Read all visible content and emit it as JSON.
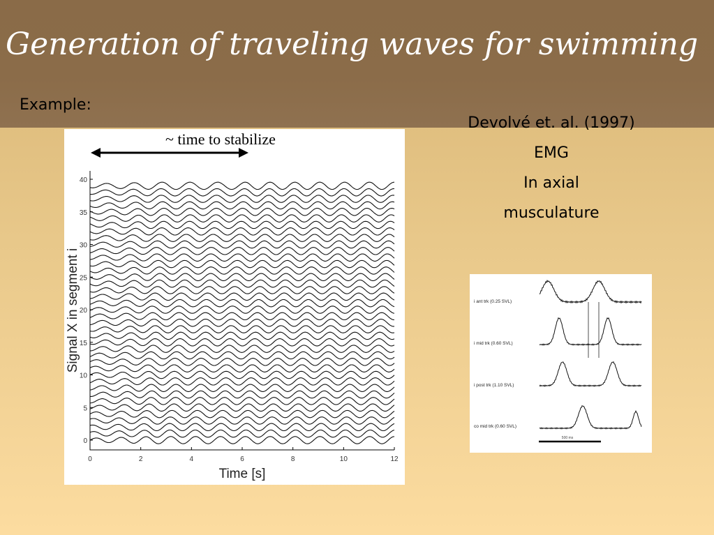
{
  "slide": {
    "title": "Generation of traveling waves for swimming",
    "example_label": "Example:",
    "citation_lines": [
      "Devolvé et. al. (1997)",
      "EMG",
      "In axial",
      "musculature"
    ],
    "colors": {
      "header": "#8b6c49",
      "background_top": "#d8b574",
      "background_bottom": "#fcdca0"
    }
  },
  "main_plot": {
    "annotation": "~ time to stabilize",
    "xlabel": "Time [s]",
    "ylabel": "Signal X in segment i",
    "x_ticks": [
      "0",
      "2",
      "4",
      "6",
      "8",
      "10",
      "12"
    ],
    "y_ticks": [
      "0",
      "5",
      "10",
      "15",
      "20",
      "25",
      "30",
      "35",
      "40"
    ]
  },
  "emg_plot": {
    "trace_labels": [
      "i ant trk (0.25 SVL)",
      "i mid trk (0.60 SVL)",
      "i post trk (1.10 SVL)",
      "co mid trk (0.60 SVL)"
    ],
    "scale_label": "500 ms"
  },
  "chart_data": {
    "type": "line",
    "title": "",
    "xlabel": "Time [s]",
    "ylabel": "Signal X in segment i",
    "xlim": [
      0,
      12
    ],
    "ylim": [
      0,
      40
    ],
    "series_count": 40,
    "oscillation_period_s": 0.98,
    "stabilization_time_s": 6,
    "grid": false
  }
}
